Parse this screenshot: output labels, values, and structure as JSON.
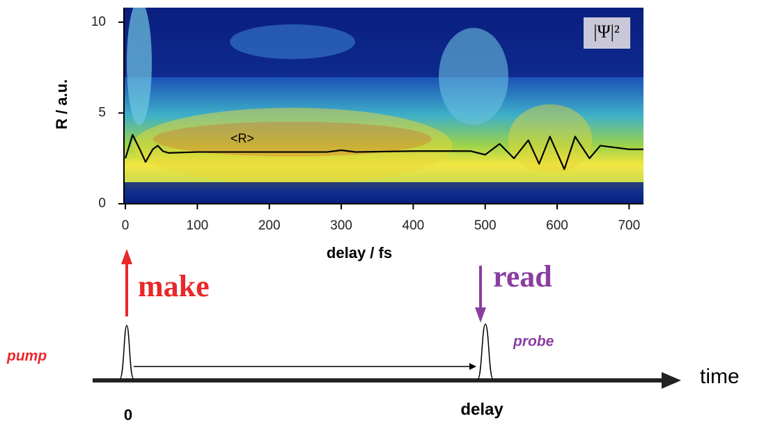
{
  "chart_data": {
    "type": "line",
    "x_label": "delay / fs",
    "y_label": "R / a.u.",
    "inset_label": "|Ψ|²",
    "xlim": [
      -2,
      720
    ],
    "ylim": [
      0,
      10.8
    ],
    "xticks": [
      0,
      100,
      200,
      300,
      400,
      500,
      600,
      700
    ],
    "yticks": [
      0,
      5,
      10
    ],
    "series": [
      {
        "name": "<R>",
        "color": "#000000",
        "x": [
          0,
          10,
          20,
          28,
          38,
          45,
          52,
          60,
          100,
          200,
          280,
          300,
          320,
          400,
          480,
          500,
          520,
          540,
          560,
          575,
          590,
          610,
          625,
          645,
          660,
          700,
          720
        ],
        "values": [
          2.5,
          3.8,
          3.0,
          2.3,
          3.0,
          3.2,
          2.9,
          2.8,
          2.85,
          2.85,
          2.85,
          2.95,
          2.85,
          2.9,
          2.9,
          2.7,
          3.3,
          2.5,
          3.5,
          2.2,
          3.7,
          1.9,
          3.7,
          2.5,
          3.2,
          3.0,
          3.0
        ]
      }
    ]
  },
  "timeline": {
    "pump_word": "make",
    "probe_word": "read",
    "pump": "pump",
    "probe": "probe",
    "axis": "time",
    "start": "0",
    "delay": "delay"
  }
}
